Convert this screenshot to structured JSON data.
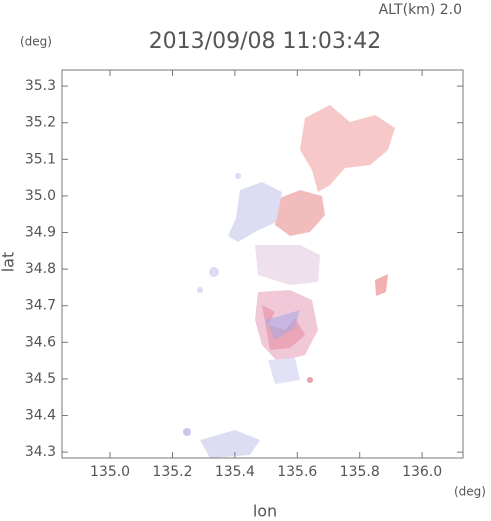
{
  "chart_data": {
    "type": "map",
    "title": "2013/09/08 11:03:42",
    "subtitle": "ALT(km) 2.0",
    "xlabel": "lon",
    "ylabel": "lat",
    "xunit": "(deg)",
    "yunit": "(deg)",
    "xlim": [
      134.846,
      136.131
    ],
    "ylim": [
      34.284,
      35.344
    ],
    "xticks": [
      {
        "value": 135,
        "label": "135.0"
      },
      135.2,
      135.4,
      135.6,
      135.8,
      {
        "value": 136,
        "label": "136.0"
      }
    ],
    "yticks": [
      34.3,
      34.4,
      34.5,
      34.6,
      34.7,
      34.8,
      34.9,
      {
        "value": 35,
        "label": "35.0"
      },
      35.1,
      35.2,
      35.3
    ]
  }
}
